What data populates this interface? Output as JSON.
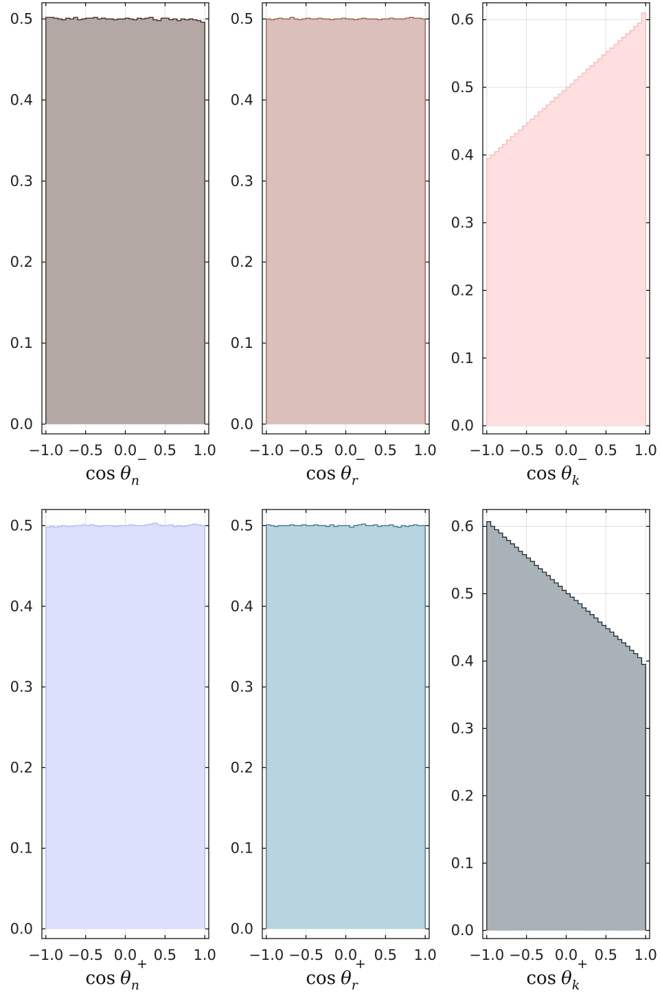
{
  "chart_data": [
    {
      "type": "histogram",
      "xlabel": {
        "base": "cos",
        "symbol": "θ",
        "sub": "n",
        "sup": "−"
      },
      "xlim": [
        -1.05,
        1.05
      ],
      "ylim": [
        -0.012,
        0.52
      ],
      "xticks": [
        -1.0,
        -0.5,
        0.0,
        0.5,
        1.0
      ],
      "xtick_labels": [
        "−1.0",
        "−0.5",
        "0.0",
        "0.5",
        "1.0"
      ],
      "yticks": [
        0.0,
        0.1,
        0.2,
        0.3,
        0.4,
        0.5
      ],
      "ytick_labels": [
        "0.0",
        "0.1",
        "0.2",
        "0.3",
        "0.4",
        "0.5"
      ],
      "grid": true,
      "fill": "#b4a8a4",
      "stroke": "#3a2520",
      "bin_edges": [
        -1.0,
        -0.95,
        -0.9,
        -0.85,
        -0.8,
        -0.75,
        -0.7,
        -0.65,
        -0.6,
        -0.55,
        -0.5,
        -0.45,
        -0.4,
        -0.35,
        -0.3,
        -0.25,
        -0.2,
        -0.15,
        -0.1,
        -0.05,
        0.0,
        0.05,
        0.1,
        0.15,
        0.2,
        0.25,
        0.3,
        0.35,
        0.4,
        0.45,
        0.5,
        0.55,
        0.6,
        0.65,
        0.7,
        0.75,
        0.8,
        0.85,
        0.9,
        0.95,
        1.0
      ],
      "values": [
        0.502,
        0.502,
        0.501,
        0.5,
        0.499,
        0.501,
        0.5,
        0.502,
        0.499,
        0.5,
        0.501,
        0.501,
        0.502,
        0.5,
        0.501,
        0.5,
        0.5,
        0.499,
        0.5,
        0.5,
        0.501,
        0.5,
        0.499,
        0.501,
        0.5,
        0.501,
        0.502,
        0.499,
        0.498,
        0.501,
        0.501,
        0.499,
        0.5,
        0.498,
        0.5,
        0.499,
        0.5,
        0.499,
        0.498,
        0.496
      ]
    },
    {
      "type": "histogram",
      "xlabel": {
        "base": "cos",
        "symbol": "θ",
        "sub": "r",
        "sup": "−"
      },
      "xlim": [
        -1.05,
        1.05
      ],
      "ylim": [
        -0.012,
        0.52
      ],
      "xticks": [
        -1.0,
        -0.5,
        0.0,
        0.5,
        1.0
      ],
      "xtick_labels": [
        "−1.0",
        "−0.5",
        "0.0",
        "0.5",
        "1.0"
      ],
      "yticks": [
        0.0,
        0.1,
        0.2,
        0.3,
        0.4,
        0.5
      ],
      "ytick_labels": [
        "0.0",
        "0.1",
        "0.2",
        "0.3",
        "0.4",
        "0.5"
      ],
      "grid": true,
      "fill": "#dbbfba",
      "stroke": "#9c5a48",
      "bin_edges": [
        -1.0,
        -0.95,
        -0.9,
        -0.85,
        -0.8,
        -0.75,
        -0.7,
        -0.65,
        -0.6,
        -0.55,
        -0.5,
        -0.45,
        -0.4,
        -0.35,
        -0.3,
        -0.25,
        -0.2,
        -0.15,
        -0.1,
        -0.05,
        0.0,
        0.05,
        0.1,
        0.15,
        0.2,
        0.25,
        0.3,
        0.35,
        0.4,
        0.45,
        0.5,
        0.55,
        0.6,
        0.65,
        0.7,
        0.75,
        0.8,
        0.85,
        0.9,
        0.95,
        1.0
      ],
      "values": [
        0.5,
        0.499,
        0.5,
        0.501,
        0.5,
        0.5,
        0.502,
        0.5,
        0.499,
        0.5,
        0.501,
        0.5,
        0.5,
        0.501,
        0.5,
        0.5,
        0.499,
        0.5,
        0.5,
        0.501,
        0.5,
        0.5,
        0.499,
        0.5,
        0.501,
        0.5,
        0.5,
        0.5,
        0.499,
        0.5,
        0.5,
        0.501,
        0.5,
        0.5,
        0.5,
        0.501,
        0.502,
        0.501,
        0.501,
        0.5
      ]
    },
    {
      "type": "histogram",
      "xlabel": {
        "base": "cos",
        "symbol": "θ",
        "sub": "k",
        "sup": "−"
      },
      "xlim": [
        -1.05,
        1.05
      ],
      "ylim": [
        -0.012,
        0.625
      ],
      "xticks": [
        -1.0,
        -0.5,
        0.0,
        0.5,
        1.0
      ],
      "xtick_labels": [
        "−1.0",
        "−0.5",
        "0.0",
        "0.5",
        "1.0"
      ],
      "yticks": [
        0.0,
        0.1,
        0.2,
        0.3,
        0.4,
        0.5,
        0.6
      ],
      "ytick_labels": [
        "0.0",
        "0.1",
        "0.2",
        "0.3",
        "0.4",
        "0.5",
        "0.6"
      ],
      "grid": true,
      "fill": "#ffdfdf",
      "stroke": "#f4b9b9",
      "bin_edges": [
        -1.0,
        -0.95,
        -0.9,
        -0.85,
        -0.8,
        -0.75,
        -0.7,
        -0.65,
        -0.6,
        -0.55,
        -0.5,
        -0.45,
        -0.4,
        -0.35,
        -0.3,
        -0.25,
        -0.2,
        -0.15,
        -0.1,
        -0.05,
        0.0,
        0.05,
        0.1,
        0.15,
        0.2,
        0.25,
        0.3,
        0.35,
        0.4,
        0.45,
        0.5,
        0.55,
        0.6,
        0.65,
        0.7,
        0.75,
        0.8,
        0.85,
        0.9,
        0.95,
        1.0
      ],
      "values": [
        0.395,
        0.4,
        0.405,
        0.411,
        0.416,
        0.422,
        0.427,
        0.432,
        0.437,
        0.443,
        0.448,
        0.453,
        0.458,
        0.464,
        0.469,
        0.474,
        0.479,
        0.485,
        0.49,
        0.495,
        0.5,
        0.505,
        0.511,
        0.516,
        0.521,
        0.527,
        0.532,
        0.537,
        0.542,
        0.548,
        0.553,
        0.558,
        0.563,
        0.569,
        0.574,
        0.579,
        0.584,
        0.59,
        0.595,
        0.61
      ]
    },
    {
      "type": "histogram",
      "xlabel": {
        "base": "cos",
        "symbol": "θ",
        "sub": "n",
        "sup": "+"
      },
      "xlim": [
        -1.05,
        1.05
      ],
      "ylim": [
        -0.012,
        0.52
      ],
      "xticks": [
        -1.0,
        -0.5,
        0.0,
        0.5,
        1.0
      ],
      "xtick_labels": [
        "−1.0",
        "−0.5",
        "0.0",
        "0.5",
        "1.0"
      ],
      "yticks": [
        0.0,
        0.1,
        0.2,
        0.3,
        0.4,
        0.5
      ],
      "ytick_labels": [
        "0.0",
        "0.1",
        "0.2",
        "0.3",
        "0.4",
        "0.5"
      ],
      "grid": true,
      "fill": "#dce0fc",
      "stroke": "#b0b8ee",
      "bin_edges": [
        -1.0,
        -0.95,
        -0.9,
        -0.85,
        -0.8,
        -0.75,
        -0.7,
        -0.65,
        -0.6,
        -0.55,
        -0.5,
        -0.45,
        -0.4,
        -0.35,
        -0.3,
        -0.25,
        -0.2,
        -0.15,
        -0.1,
        -0.05,
        0.0,
        0.05,
        0.1,
        0.15,
        0.2,
        0.25,
        0.3,
        0.35,
        0.4,
        0.45,
        0.5,
        0.55,
        0.6,
        0.65,
        0.7,
        0.75,
        0.8,
        0.85,
        0.9,
        0.95,
        1.0
      ],
      "values": [
        0.498,
        0.499,
        0.498,
        0.499,
        0.5,
        0.499,
        0.499,
        0.5,
        0.5,
        0.501,
        0.5,
        0.501,
        0.5,
        0.499,
        0.5,
        0.5,
        0.5,
        0.499,
        0.5,
        0.5,
        0.5,
        0.501,
        0.5,
        0.5,
        0.5,
        0.501,
        0.502,
        0.503,
        0.501,
        0.5,
        0.5,
        0.501,
        0.499,
        0.5,
        0.499,
        0.5,
        0.501,
        0.502,
        0.501,
        0.5
      ]
    },
    {
      "type": "histogram",
      "xlabel": {
        "base": "cos",
        "symbol": "θ",
        "sub": "r",
        "sup": "+"
      },
      "xlim": [
        -1.05,
        1.05
      ],
      "ylim": [
        -0.012,
        0.52
      ],
      "xticks": [
        -1.0,
        -0.5,
        0.0,
        0.5,
        1.0
      ],
      "xtick_labels": [
        "−1.0",
        "−0.5",
        "0.0",
        "0.5",
        "1.0"
      ],
      "yticks": [
        0.0,
        0.1,
        0.2,
        0.3,
        0.4,
        0.5
      ],
      "ytick_labels": [
        "0.0",
        "0.1",
        "0.2",
        "0.3",
        "0.4",
        "0.5"
      ],
      "grid": true,
      "fill": "#b7d4e0",
      "stroke": "#3f6f86",
      "bin_edges": [
        -1.0,
        -0.95,
        -0.9,
        -0.85,
        -0.8,
        -0.75,
        -0.7,
        -0.65,
        -0.6,
        -0.55,
        -0.5,
        -0.45,
        -0.4,
        -0.35,
        -0.3,
        -0.25,
        -0.2,
        -0.15,
        -0.1,
        -0.05,
        0.0,
        0.05,
        0.1,
        0.15,
        0.2,
        0.25,
        0.3,
        0.35,
        0.4,
        0.45,
        0.5,
        0.55,
        0.6,
        0.65,
        0.7,
        0.75,
        0.8,
        0.85,
        0.9,
        0.95,
        1.0
      ],
      "values": [
        0.501,
        0.5,
        0.499,
        0.5,
        0.5,
        0.5,
        0.501,
        0.5,
        0.5,
        0.501,
        0.5,
        0.5,
        0.501,
        0.5,
        0.5,
        0.499,
        0.501,
        0.499,
        0.5,
        0.5,
        0.5,
        0.498,
        0.5,
        0.501,
        0.502,
        0.5,
        0.5,
        0.501,
        0.499,
        0.5,
        0.5,
        0.501,
        0.499,
        0.498,
        0.5,
        0.499,
        0.5,
        0.501,
        0.5,
        0.5
      ]
    },
    {
      "type": "histogram",
      "xlabel": {
        "base": "cos",
        "symbol": "θ",
        "sub": "k",
        "sup": "+"
      },
      "xlim": [
        -1.05,
        1.05
      ],
      "ylim": [
        -0.012,
        0.625
      ],
      "xticks": [
        -1.0,
        -0.5,
        0.0,
        0.5,
        1.0
      ],
      "xtick_labels": [
        "−1.0",
        "−0.5",
        "0.0",
        "0.5",
        "1.0"
      ],
      "yticks": [
        0.0,
        0.1,
        0.2,
        0.3,
        0.4,
        0.5,
        0.6
      ],
      "ytick_labels": [
        "0.0",
        "0.1",
        "0.2",
        "0.3",
        "0.4",
        "0.5",
        "0.6"
      ],
      "grid": true,
      "fill": "#a9b2b6",
      "stroke": "#1a2a36",
      "bin_edges": [
        -1.0,
        -0.95,
        -0.9,
        -0.85,
        -0.8,
        -0.75,
        -0.7,
        -0.65,
        -0.6,
        -0.55,
        -0.5,
        -0.45,
        -0.4,
        -0.35,
        -0.3,
        -0.25,
        -0.2,
        -0.15,
        -0.1,
        -0.05,
        0.0,
        0.05,
        0.1,
        0.15,
        0.2,
        0.25,
        0.3,
        0.35,
        0.4,
        0.45,
        0.5,
        0.55,
        0.6,
        0.65,
        0.7,
        0.75,
        0.8,
        0.85,
        0.9,
        0.95,
        1.0
      ],
      "values": [
        0.607,
        0.6,
        0.595,
        0.59,
        0.584,
        0.579,
        0.574,
        0.569,
        0.563,
        0.558,
        0.553,
        0.548,
        0.542,
        0.537,
        0.532,
        0.527,
        0.521,
        0.516,
        0.511,
        0.505,
        0.5,
        0.495,
        0.49,
        0.485,
        0.479,
        0.474,
        0.469,
        0.464,
        0.458,
        0.453,
        0.448,
        0.443,
        0.437,
        0.432,
        0.427,
        0.422,
        0.416,
        0.411,
        0.405,
        0.395
      ]
    }
  ]
}
